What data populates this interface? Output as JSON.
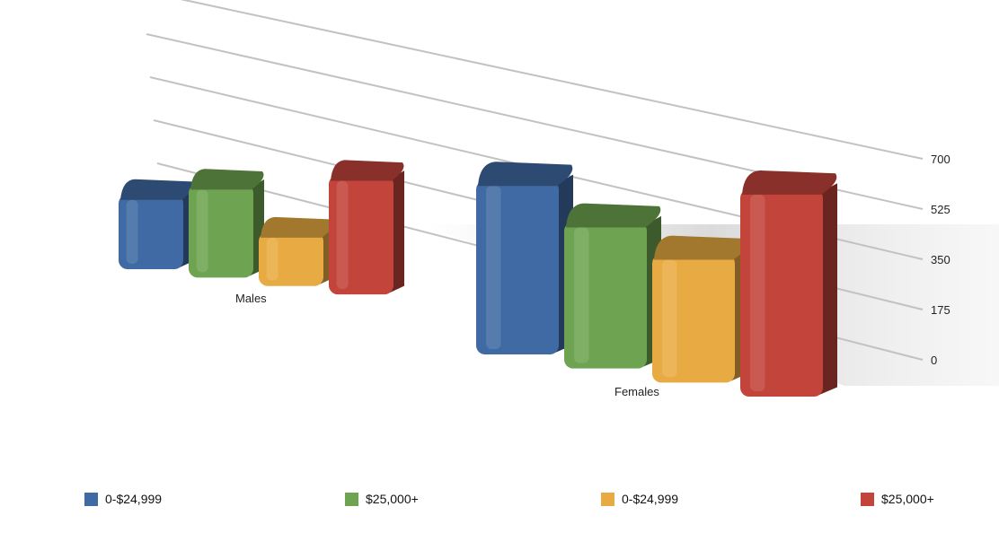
{
  "chart_data": {
    "type": "bar",
    "categories": [
      "Males",
      "Females"
    ],
    "series": [
      {
        "name": "0-$24,999",
        "color": "#3f6aa3",
        "values": [
          160,
          570
        ]
      },
      {
        "name": "$25,000+",
        "color": "#6ea451",
        "values": [
          200,
          480
        ]
      },
      {
        "name": "0-$24,999",
        "color": "#e8aa42",
        "values": [
          115,
          420
        ]
      },
      {
        "name": "$25,000+",
        "color": "#c2443a",
        "values": [
          255,
          680
        ]
      }
    ],
    "ylim": [
      0,
      700
    ],
    "yticks": [
      "0",
      "175",
      "350",
      "525",
      "700"
    ],
    "grid": true,
    "legend_position": "bottom",
    "view": "3d"
  }
}
